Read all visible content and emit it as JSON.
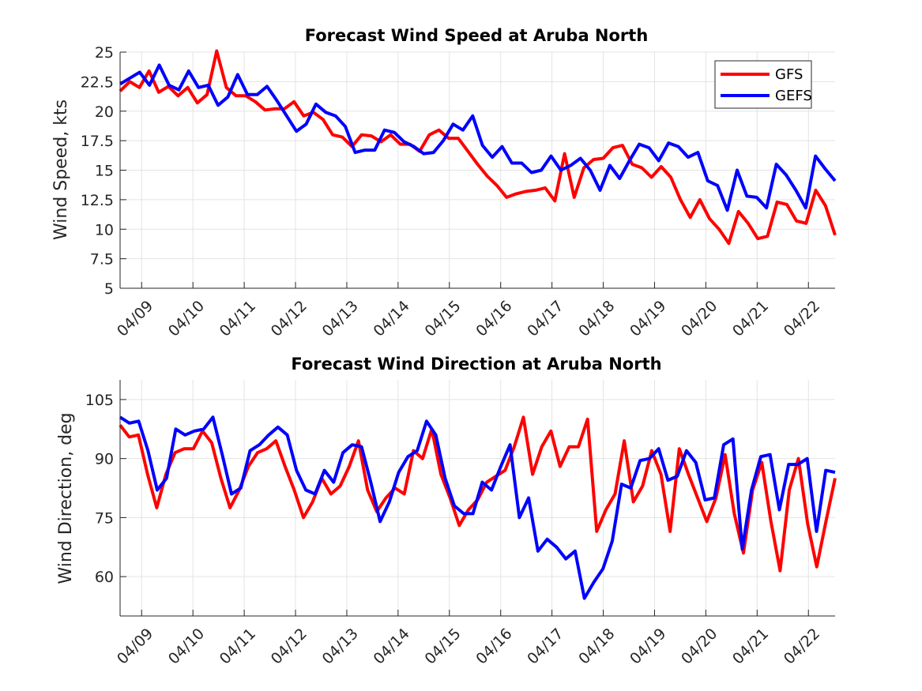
{
  "chart_data": [
    {
      "type": "line",
      "title": "Forecast Wind Speed at Aruba North",
      "xlabel": "",
      "ylabel": "Wind Speed, kts",
      "x_start_day": 8.58,
      "x_end_day": 22.52,
      "xlim_days": [
        8.58,
        22.52
      ],
      "x_ticks": [
        9,
        10,
        11,
        12,
        13,
        14,
        15,
        16,
        17,
        18,
        19,
        20,
        21,
        22
      ],
      "x_tick_labels": [
        "04/09",
        "04/10",
        "04/11",
        "04/12",
        "04/13",
        "04/14",
        "04/15",
        "04/16",
        "04/17",
        "04/18",
        "04/19",
        "04/20",
        "04/21",
        "04/22"
      ],
      "ylim": [
        5,
        25
      ],
      "y_ticks": [
        5,
        7.5,
        10,
        12.5,
        15,
        17.5,
        20,
        22.5,
        25
      ],
      "y_tick_labels": [
        "5",
        "7.5",
        "10",
        "12.5",
        "15",
        "17.5",
        "20",
        "22.5",
        "25"
      ],
      "grid": true,
      "legend_position": "top-right",
      "series": [
        {
          "name": "GFS",
          "color": "#ff0000",
          "values": [
            21.7,
            22.5,
            22.0,
            23.4,
            21.6,
            22.1,
            21.3,
            22.0,
            20.7,
            21.4,
            25.1,
            22.0,
            21.3,
            21.3,
            20.8,
            20.1,
            20.2,
            20.2,
            20.8,
            19.6,
            19.9,
            19.3,
            18.0,
            17.8,
            17.0,
            18.0,
            17.9,
            17.4,
            18.0,
            17.2,
            17.2,
            16.6,
            18.0,
            18.4,
            17.7,
            17.7,
            16.6,
            15.5,
            14.5,
            13.7,
            12.7,
            13.0,
            13.2,
            13.3,
            13.5,
            12.4,
            16.4,
            12.7,
            15.2,
            15.9,
            16.0,
            16.9,
            17.1,
            15.5,
            15.2,
            14.4,
            15.3,
            14.4,
            12.5,
            11.0,
            12.5,
            10.9,
            10.0,
            8.8,
            11.5,
            10.5,
            9.2,
            9.4,
            12.3,
            12.1,
            10.7,
            10.5,
            13.3,
            12.0,
            9.5
          ]
        },
        {
          "name": "GEFS",
          "color": "#0000ff",
          "values": [
            22.3,
            22.8,
            23.3,
            22.2,
            23.9,
            22.2,
            21.8,
            23.4,
            22.0,
            22.2,
            20.5,
            21.2,
            23.1,
            21.4,
            21.4,
            22.1,
            20.9,
            19.6,
            18.3,
            18.9,
            20.6,
            19.9,
            19.6,
            18.7,
            16.5,
            16.7,
            16.7,
            18.4,
            18.2,
            17.4,
            17.0,
            16.4,
            16.5,
            17.5,
            18.9,
            18.4,
            19.6,
            17.1,
            16.1,
            17.0,
            15.6,
            15.6,
            14.8,
            15.0,
            16.2,
            15.0,
            15.4,
            16.0,
            15.0,
            13.3,
            15.4,
            14.3,
            15.8,
            17.2,
            16.9,
            15.8,
            17.3,
            17.0,
            16.1,
            16.5,
            14.1,
            13.7,
            11.6,
            15.0,
            12.8,
            12.7,
            11.8,
            15.5,
            14.6,
            13.3,
            11.8,
            16.2,
            15.1,
            14.1
          ]
        }
      ]
    },
    {
      "type": "line",
      "title": "Forecast Wind Direction at Aruba North",
      "xlabel": "",
      "ylabel": "Wind Direction, deg",
      "x_start_day": 8.58,
      "x_end_day": 22.52,
      "xlim_days": [
        8.58,
        22.52
      ],
      "x_ticks": [
        9,
        10,
        11,
        12,
        13,
        14,
        15,
        16,
        17,
        18,
        19,
        20,
        21,
        22
      ],
      "x_tick_labels": [
        "04/09",
        "04/10",
        "04/11",
        "04/12",
        "04/13",
        "04/14",
        "04/15",
        "04/16",
        "04/17",
        "04/18",
        "04/19",
        "04/20",
        "04/21",
        "04/22"
      ],
      "ylim": [
        50,
        110
      ],
      "y_ticks": [
        60,
        75,
        90,
        105
      ],
      "y_tick_labels": [
        "60",
        "75",
        "90",
        "105"
      ],
      "grid": true,
      "series": [
        {
          "name": "GFS",
          "color": "#ff0000",
          "values": [
            98.5,
            95.5,
            96.0,
            86.0,
            77.5,
            86.0,
            91.5,
            92.5,
            92.5,
            97.0,
            94.0,
            85.0,
            77.5,
            82.0,
            88.0,
            91.5,
            92.5,
            94.5,
            88.0,
            82.0,
            75.0,
            79.0,
            85.0,
            81.0,
            83.0,
            88.0,
            94.5,
            82.0,
            76.5,
            80.0,
            82.5,
            81.0,
            92.0,
            90.0,
            97.5,
            86.0,
            80.0,
            73.0,
            77.0,
            79.5,
            84.0,
            85.5,
            87.0,
            93.0,
            100.5,
            86.0,
            93.0,
            97.0,
            88.0,
            93.0,
            93.0,
            100.0,
            71.5,
            77.0,
            81.0,
            94.5,
            79.0,
            83.0,
            92.0,
            86.0,
            71.5,
            92.5,
            86.0,
            80.0,
            74.0,
            80.0,
            91.0,
            76.0,
            66.0,
            82.0,
            89.0,
            74.0,
            61.5,
            82.0,
            90.0,
            73.5,
            62.5,
            74.0,
            85.0
          ]
        },
        {
          "name": "GEFS",
          "color": "#0000ff",
          "values": [
            100.5,
            99.0,
            99.5,
            92.0,
            82.0,
            85.0,
            97.5,
            96.0,
            97.0,
            97.5,
            100.5,
            91.0,
            81.0,
            82.5,
            92.0,
            93.5,
            96.0,
            98.0,
            96.0,
            87.0,
            82.0,
            81.0,
            87.0,
            84.0,
            91.5,
            93.5,
            93.0,
            84.0,
            74.0,
            79.0,
            86.5,
            90.5,
            92.0,
            99.5,
            96.0,
            85.0,
            78.0,
            76.0,
            76.0,
            84.0,
            82.0,
            88.0,
            93.5,
            75.0,
            80.0,
            66.5,
            69.5,
            67.5,
            64.5,
            66.5,
            54.5,
            58.5,
            62.0,
            69.0,
            83.5,
            82.5,
            89.5,
            90.0,
            92.5,
            84.5,
            85.5,
            92.0,
            89.0,
            79.5,
            80.0,
            93.5,
            95.0,
            67.0,
            82.0,
            90.5,
            91.0,
            77.0,
            88.5,
            88.5,
            90.0,
            71.5,
            87.0,
            86.5
          ]
        }
      ]
    }
  ]
}
